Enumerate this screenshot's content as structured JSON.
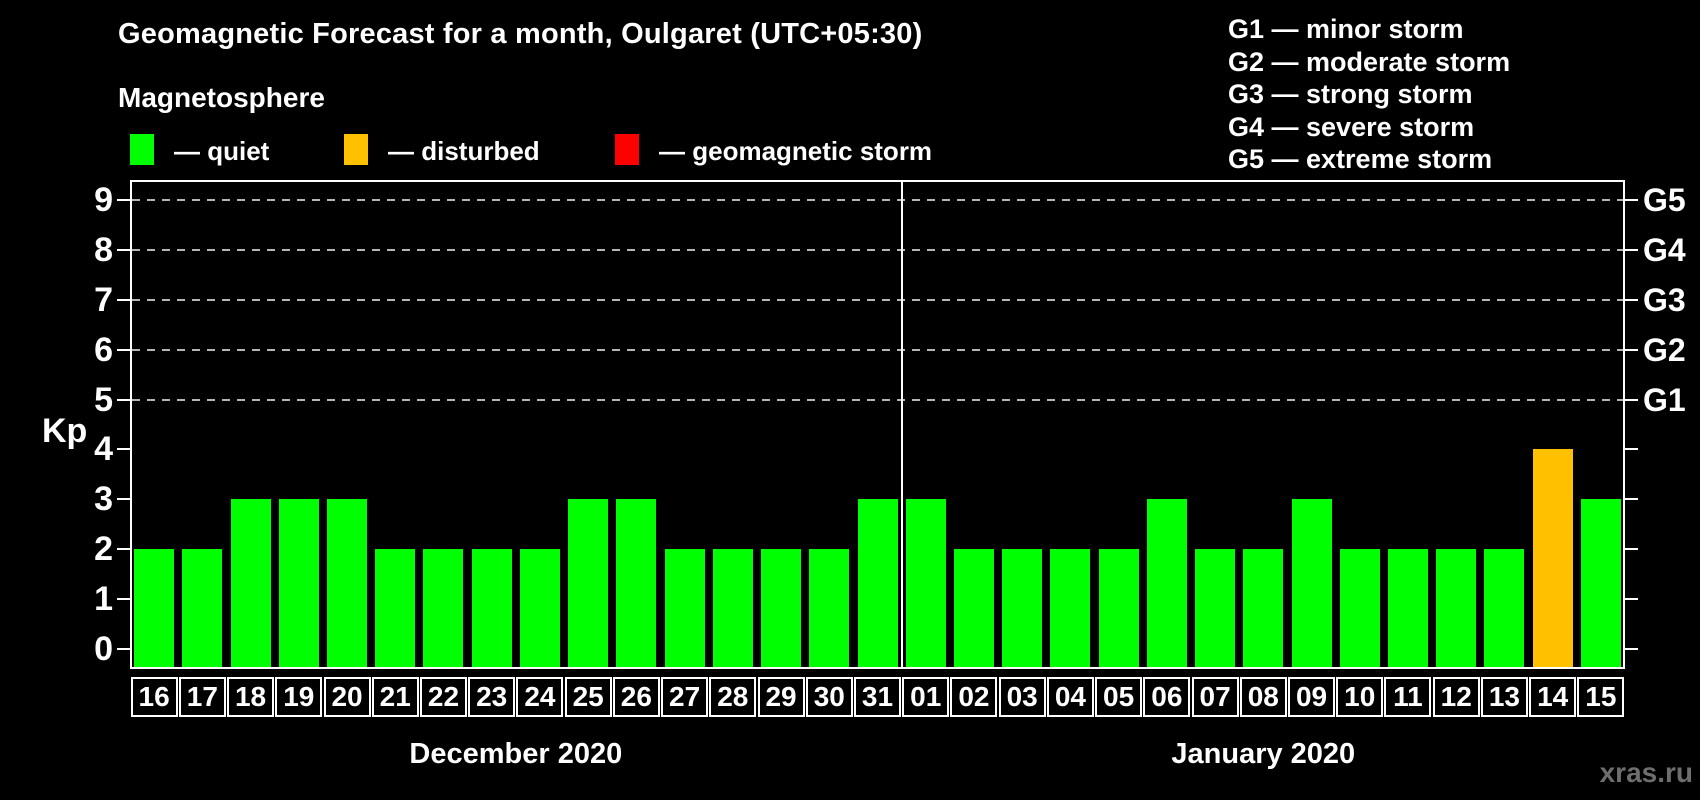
{
  "header": {
    "title": "Geomagnetic Forecast for a month, Oulgaret (UTC+05:30)"
  },
  "legend": {
    "title": "Magnetosphere",
    "items": [
      {
        "key": "quiet",
        "label": "— quiet",
        "color": "#00ff00"
      },
      {
        "key": "disturbed",
        "label": "— disturbed",
        "color": "#ffc000"
      },
      {
        "key": "storm",
        "label": "— geomagnetic storm",
        "color": "#ff0000"
      }
    ]
  },
  "g_legend": [
    "G1 — minor storm",
    "G2 — moderate storm",
    "G3 — strong storm",
    "G4 — severe storm",
    "G5 — extreme storm"
  ],
  "footer": {
    "watermark": "xras.ru"
  },
  "chart_data": {
    "type": "bar",
    "title": "Geomagnetic Forecast for a month, Oulgaret (UTC+05:30)",
    "ylabel": "Kp",
    "ylim": [
      -0.4,
      9.4
    ],
    "yticks": [
      0,
      1,
      2,
      3,
      4,
      5,
      6,
      7,
      8,
      9
    ],
    "grid": "dashed horizontal lines at Kp 5-9, legend position top",
    "right_axis": [
      {
        "kp": 5,
        "label": "G1"
      },
      {
        "kp": 6,
        "label": "G2"
      },
      {
        "kp": 7,
        "label": "G3"
      },
      {
        "kp": 8,
        "label": "G4"
      },
      {
        "kp": 9,
        "label": "G5"
      }
    ],
    "gridlines_kp": [
      5,
      6,
      7,
      8,
      9
    ],
    "months": [
      {
        "label": "December 2020",
        "days": 16
      },
      {
        "label": "January 2020",
        "days": 15
      }
    ],
    "bars": [
      {
        "day": "16",
        "kp": 2,
        "status": "quiet"
      },
      {
        "day": "17",
        "kp": 2,
        "status": "quiet"
      },
      {
        "day": "18",
        "kp": 3,
        "status": "quiet"
      },
      {
        "day": "19",
        "kp": 3,
        "status": "quiet"
      },
      {
        "day": "20",
        "kp": 3,
        "status": "quiet"
      },
      {
        "day": "21",
        "kp": 2,
        "status": "quiet"
      },
      {
        "day": "22",
        "kp": 2,
        "status": "quiet"
      },
      {
        "day": "23",
        "kp": 2,
        "status": "quiet"
      },
      {
        "day": "24",
        "kp": 2,
        "status": "quiet"
      },
      {
        "day": "25",
        "kp": 3,
        "status": "quiet"
      },
      {
        "day": "26",
        "kp": 3,
        "status": "quiet"
      },
      {
        "day": "27",
        "kp": 2,
        "status": "quiet"
      },
      {
        "day": "28",
        "kp": 2,
        "status": "quiet"
      },
      {
        "day": "29",
        "kp": 2,
        "status": "quiet"
      },
      {
        "day": "30",
        "kp": 2,
        "status": "quiet"
      },
      {
        "day": "31",
        "kp": 3,
        "status": "quiet"
      },
      {
        "day": "01",
        "kp": 3,
        "status": "quiet"
      },
      {
        "day": "02",
        "kp": 2,
        "status": "quiet"
      },
      {
        "day": "03",
        "kp": 2,
        "status": "quiet"
      },
      {
        "day": "04",
        "kp": 2,
        "status": "quiet"
      },
      {
        "day": "05",
        "kp": 2,
        "status": "quiet"
      },
      {
        "day": "06",
        "kp": 3,
        "status": "quiet"
      },
      {
        "day": "07",
        "kp": 2,
        "status": "quiet"
      },
      {
        "day": "08",
        "kp": 2,
        "status": "quiet"
      },
      {
        "day": "09",
        "kp": 3,
        "status": "quiet"
      },
      {
        "day": "10",
        "kp": 2,
        "status": "quiet"
      },
      {
        "day": "11",
        "kp": 2,
        "status": "quiet"
      },
      {
        "day": "12",
        "kp": 2,
        "status": "quiet"
      },
      {
        "day": "13",
        "kp": 2,
        "status": "quiet"
      },
      {
        "day": "14",
        "kp": 4,
        "status": "disturbed"
      },
      {
        "day": "15",
        "kp": 3,
        "status": "quiet"
      }
    ]
  }
}
